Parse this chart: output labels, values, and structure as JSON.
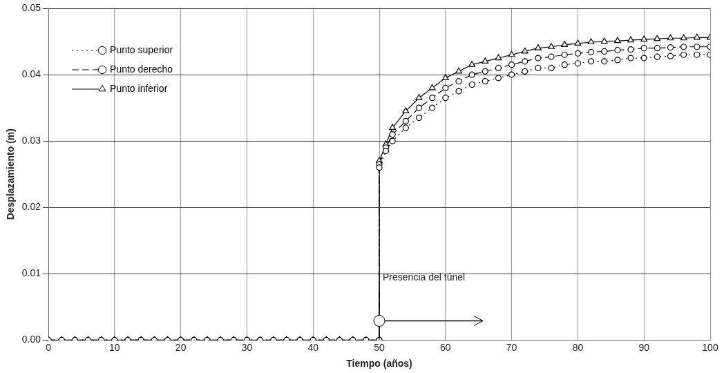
{
  "chart_data": {
    "type": "line",
    "xlabel": "Tiempo (años)",
    "ylabel": "Desplazamiento (m)",
    "xlim": [
      0,
      100
    ],
    "xticks": [
      0,
      10,
      20,
      30,
      40,
      50,
      60,
      70,
      80,
      90,
      100
    ],
    "ylim": [
      0,
      0.05
    ],
    "yticks": [
      {
        "value": 0,
        "label": "0.00"
      },
      {
        "value": 0.01,
        "label": "0.01"
      },
      {
        "value": 0.02,
        "label": "0.02"
      },
      {
        "value": 0.03,
        "label": "0.03"
      },
      {
        "value": 0.04,
        "label": "0.04"
      },
      {
        "value": 0.05,
        "label": "0.05"
      }
    ],
    "grid": true,
    "legend": "top left",
    "annotations": [
      {
        "text": "Presencia del túnel",
        "x": 50,
        "y": 0.009
      }
    ],
    "x": [
      0,
      2,
      4,
      6,
      8,
      10,
      12,
      14,
      16,
      18,
      20,
      22,
      24,
      26,
      28,
      30,
      32,
      34,
      36,
      38,
      40,
      42,
      44,
      46,
      48,
      50,
      50,
      51,
      52,
      54,
      56,
      58,
      60,
      62,
      64,
      66,
      68,
      70,
      72,
      74,
      76,
      78,
      80,
      82,
      84,
      86,
      88,
      90,
      92,
      94,
      96,
      98,
      100
    ],
    "series": [
      {
        "name": "Punto superior",
        "color": "#000000",
        "line_style": "dotted",
        "marker": "circle",
        "values": [
          0,
          0,
          0,
          0,
          0,
          0,
          0,
          0,
          0,
          0,
          0,
          0,
          0,
          0,
          0,
          0,
          0,
          0,
          0,
          0,
          0,
          0,
          0,
          0,
          0,
          0,
          0.026,
          0.0285,
          0.03,
          0.032,
          0.0335,
          0.035,
          0.0365,
          0.0375,
          0.0385,
          0.039,
          0.0395,
          0.04,
          0.0405,
          0.041,
          0.041,
          0.0415,
          0.0417,
          0.042,
          0.042,
          0.0422,
          0.0425,
          0.0425,
          0.0427,
          0.0428,
          0.043,
          0.043,
          0.043
        ]
      },
      {
        "name": "Punto derecho",
        "color": "#000000",
        "line_style": "dashed",
        "marker": "circle",
        "values": [
          0,
          0,
          0,
          0,
          0,
          0,
          0,
          0,
          0,
          0,
          0,
          0,
          0,
          0,
          0,
          0,
          0,
          0,
          0,
          0,
          0,
          0,
          0,
          0,
          0,
          0,
          0.0265,
          0.029,
          0.031,
          0.033,
          0.035,
          0.0365,
          0.038,
          0.039,
          0.04,
          0.0405,
          0.041,
          0.0415,
          0.042,
          0.0425,
          0.0427,
          0.043,
          0.0432,
          0.0434,
          0.0435,
          0.0437,
          0.0438,
          0.044,
          0.044,
          0.0441,
          0.0442,
          0.0442,
          0.0442
        ]
      },
      {
        "name": "Punto inferior",
        "color": "#000000",
        "line_style": "solid",
        "marker": "triangle",
        "values": [
          0,
          0,
          0,
          0,
          0,
          0,
          0,
          0,
          0,
          0,
          0,
          0,
          0,
          0,
          0,
          0,
          0,
          0,
          0,
          0,
          0,
          0,
          0,
          0,
          0,
          0,
          0.027,
          0.0295,
          0.032,
          0.0345,
          0.0365,
          0.038,
          0.0395,
          0.0405,
          0.0415,
          0.042,
          0.0425,
          0.043,
          0.0435,
          0.044,
          0.0442,
          0.0445,
          0.0447,
          0.0449,
          0.045,
          0.0451,
          0.0452,
          0.0453,
          0.0454,
          0.0455,
          0.0455,
          0.0456,
          0.0456
        ]
      }
    ]
  }
}
